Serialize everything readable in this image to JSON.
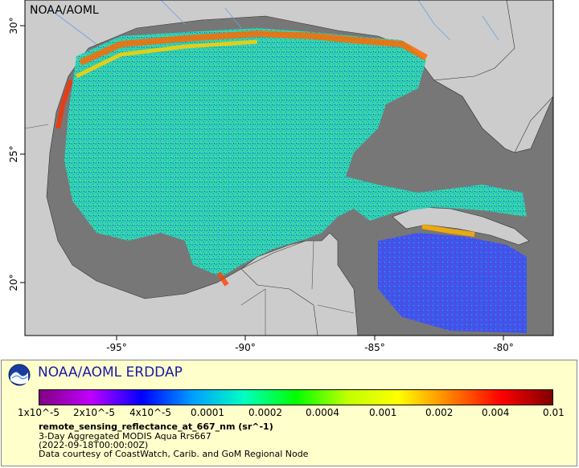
{
  "map": {
    "watermark": "NOAA/AOML",
    "lon_ticks": [
      "-95°",
      "-90°",
      "-85°",
      "-80°"
    ],
    "lat_ticks": [
      "30°",
      "25°",
      "20°"
    ],
    "colors": {
      "land": "#cccccc",
      "no_data": "#777777",
      "coast": "#333333"
    }
  },
  "legend": {
    "title": "NOAA/AOML ERDDAP",
    "colorbar_labels": [
      "1x10^-5",
      "2x10^-5",
      "4x10^-5",
      "0.0001",
      "0.0002",
      "0.0004",
      "0.001",
      "0.002",
      "0.004",
      "0.01"
    ],
    "variable": "remote_sensing_reflectance_at_667_nm (sr^-1)",
    "description": "3-Day Aggregated MODIS Aqua Rrs667",
    "time": "(2022-09-18T00:00:00Z)",
    "credit": "Data courtesy of CoastWatch, Carib. and GoM Regional Node",
    "colorbar_colors": [
      "#800080",
      "#c000ff",
      "#0000ff",
      "#00a0ff",
      "#00ffc0",
      "#00ff00",
      "#c0ff00",
      "#ffff00",
      "#ff8000",
      "#ff0000",
      "#800000"
    ]
  }
}
